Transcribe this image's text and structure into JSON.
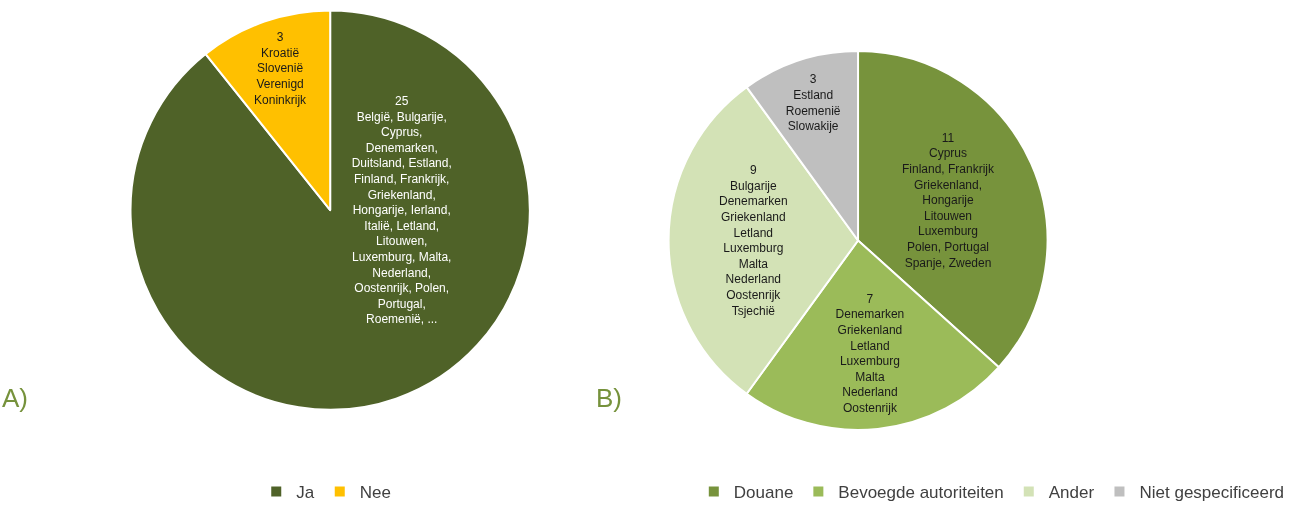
{
  "chart_data": [
    {
      "type": "pie",
      "categories": [
        "Ja",
        "Nee"
      ],
      "values": [
        25,
        3
      ],
      "colors": [
        "#4f6228",
        "#ffc000"
      ],
      "value_labels": [
        "25\nBelgië, Bulgarije,\nCyprus,\nDenemarken,\nDuitsland, Estland,\nFinland, Frankrijk,\nGriekenland,\nHongarije, Ierland,\nItalië, Letland,\nLitouwen,\nLuxemburg, Malta,\nNederland,\nOostenrijk, Polen,\nPortugal,\nRoemenië, ...",
        "3\nKroatië\nSlovenië\nVerenigd\nKoninkrijk"
      ],
      "legend": "bottom",
      "annotations": [
        "A)"
      ]
    },
    {
      "type": "pie",
      "categories": [
        "Douane",
        "Bevoegde autoriteiten",
        "Ander",
        "Niet gespecificeerd"
      ],
      "values": [
        11,
        7,
        9,
        3
      ],
      "colors": [
        "#77933c",
        "#9bbb59",
        "#d3e2b6",
        "#bfbfbf"
      ],
      "value_labels": [
        "11\nCyprus\nFinland, Frankrijk\nGriekenland,\nHongarije\nLitouwen\nLuxemburg\nPolen, Portugal\nSpanje, Zweden",
        "7\nDenemarken\nGriekenland\nLetland\nLuxemburg\nMalta\nNederland\nOostenrijk",
        "9\nBulgarije\nDenemarken\nGriekenland\nLetland\nLuxemburg\nMalta\nNederland\nOostenrijk\nTsjechië",
        "3\nEstland\nRoemenië\nSlowakije"
      ],
      "legend": "bottom",
      "annotations": [
        "B)"
      ]
    }
  ]
}
